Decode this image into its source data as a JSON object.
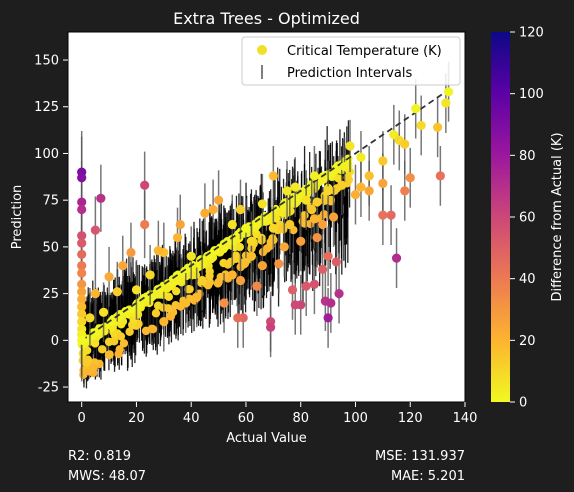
{
  "figure": {
    "background": "#1e1e1e",
    "plot_background": "#ffffff",
    "text_color": "#ffffff"
  },
  "stats": {
    "r2": "R2: 0.819",
    "mws": "MWS: 48.07",
    "mse": "MSE: 131.937",
    "mae": "MAE: 5.201"
  },
  "chart_data": {
    "type": "scatter",
    "title": "Extra Trees - Optimized",
    "xlabel": "Actual Value",
    "ylabel": "Prediction",
    "xlim": [
      -5,
      140
    ],
    "ylim": [
      -33,
      165
    ],
    "xticks": [
      0,
      20,
      40,
      60,
      80,
      100,
      120,
      140
    ],
    "yticks": [
      -25,
      0,
      25,
      50,
      75,
      100,
      125,
      150
    ],
    "grid": false,
    "legend": {
      "position": "top-right",
      "entries": [
        {
          "label": "Critical Temperature (K)",
          "marker": "circle",
          "color": "#f0e028"
        },
        {
          "label": "Prediction Intervals",
          "marker": "errorbar",
          "color": "#7f7f7f"
        }
      ]
    },
    "reference_line": {
      "from": [
        0,
        0
      ],
      "to": [
        135,
        135
      ],
      "style": "dashed",
      "color": "#333333"
    },
    "colorbar": {
      "label": "Difference from Actual (K)",
      "range": [
        0,
        120
      ],
      "ticks": [
        0,
        20,
        40,
        60,
        80,
        100,
        120
      ],
      "colormap": "plasma_r",
      "stops": [
        "#f0f921",
        "#fdb42f",
        "#ed7953",
        "#cc4778",
        "#9c179e",
        "#5c01a6",
        "#0d0887"
      ]
    },
    "dense_cloud": {
      "x_range": [
        0,
        98
      ],
      "relative_spread": 0.45,
      "interval_halfwidth": 20
    },
    "points": [
      {
        "x": 0,
        "y": 90,
        "err": 22
      },
      {
        "x": 0,
        "y": 87,
        "err": 22
      },
      {
        "x": 0,
        "y": 74,
        "err": 22
      },
      {
        "x": 0,
        "y": 70,
        "err": 22
      },
      {
        "x": 0,
        "y": 56,
        "err": 22
      },
      {
        "x": 0,
        "y": 52,
        "err": 22
      },
      {
        "x": 0,
        "y": 46,
        "err": 22
      },
      {
        "x": 0,
        "y": 40,
        "err": 22
      },
      {
        "x": 0,
        "y": 36,
        "err": 22
      },
      {
        "x": 0,
        "y": 30,
        "err": 22
      },
      {
        "x": 0,
        "y": 26,
        "err": 22
      },
      {
        "x": 0,
        "y": 22,
        "err": 22
      },
      {
        "x": 0,
        "y": 18,
        "err": 22
      },
      {
        "x": 0,
        "y": 14,
        "err": 22
      },
      {
        "x": 0,
        "y": 10,
        "err": 22
      },
      {
        "x": 0,
        "y": 6,
        "err": 22
      },
      {
        "x": 0,
        "y": 3,
        "err": 22
      },
      {
        "x": 0,
        "y": 0,
        "err": 22
      },
      {
        "x": 7,
        "y": 76,
        "err": 18
      },
      {
        "x": 5,
        "y": 59,
        "err": 18
      },
      {
        "x": 23,
        "y": 83,
        "err": 18
      },
      {
        "x": 23,
        "y": 62,
        "err": 18
      },
      {
        "x": 102,
        "y": 98,
        "err": 14
      },
      {
        "x": 98,
        "y": 104,
        "err": 14
      },
      {
        "x": 102,
        "y": 82,
        "err": 16
      },
      {
        "x": 105,
        "y": 88,
        "err": 16
      },
      {
        "x": 105,
        "y": 80,
        "err": 16
      },
      {
        "x": 110,
        "y": 84,
        "err": 16
      },
      {
        "x": 110,
        "y": 96,
        "err": 16
      },
      {
        "x": 114,
        "y": 110,
        "err": 16
      },
      {
        "x": 116,
        "y": 107,
        "err": 16
      },
      {
        "x": 118,
        "y": 105,
        "err": 16
      },
      {
        "x": 118,
        "y": 80,
        "err": 16
      },
      {
        "x": 120,
        "y": 87,
        "err": 16
      },
      {
        "x": 122,
        "y": 124,
        "err": 16
      },
      {
        "x": 124,
        "y": 115,
        "err": 16
      },
      {
        "x": 130,
        "y": 114,
        "err": 16
      },
      {
        "x": 133,
        "y": 127,
        "err": 16
      },
      {
        "x": 134,
        "y": 133,
        "err": 16
      },
      {
        "x": 131,
        "y": 88,
        "err": 16
      },
      {
        "x": 110,
        "y": 67,
        "err": 16
      },
      {
        "x": 113,
        "y": 67,
        "err": 16
      },
      {
        "x": 115,
        "y": 44,
        "err": 16
      },
      {
        "x": 90,
        "y": 12,
        "err": 16
      },
      {
        "x": 89,
        "y": 21,
        "err": 16
      },
      {
        "x": 91,
        "y": 20,
        "err": 16
      },
      {
        "x": 94,
        "y": 25,
        "err": 16
      },
      {
        "x": 88,
        "y": 38,
        "err": 16
      },
      {
        "x": 90,
        "y": 45,
        "err": 16
      },
      {
        "x": 93,
        "y": 42,
        "err": 16
      },
      {
        "x": 85,
        "y": 65,
        "err": 16
      },
      {
        "x": 80,
        "y": 19,
        "err": 16
      },
      {
        "x": 78,
        "y": 19,
        "err": 16
      },
      {
        "x": 77,
        "y": 27,
        "err": 16
      },
      {
        "x": 69,
        "y": 10,
        "err": 16
      },
      {
        "x": 69,
        "y": 7,
        "err": 16
      },
      {
        "x": 59,
        "y": 12,
        "err": 16
      },
      {
        "x": 57,
        "y": 12,
        "err": 16
      },
      {
        "x": 52,
        "y": 20,
        "err": 16
      },
      {
        "x": 58,
        "y": 32,
        "err": 16
      },
      {
        "x": 64,
        "y": 29,
        "err": 16
      },
      {
        "x": 66,
        "y": 40,
        "err": 16
      },
      {
        "x": 72,
        "y": 41,
        "err": 16
      },
      {
        "x": 74,
        "y": 50,
        "err": 16
      },
      {
        "x": 80,
        "y": 53,
        "err": 16
      },
      {
        "x": 82,
        "y": 29,
        "err": 16
      },
      {
        "x": 85,
        "y": 30,
        "err": 16
      },
      {
        "x": 86,
        "y": 55,
        "err": 16
      },
      {
        "x": 84,
        "y": 70,
        "err": 16
      },
      {
        "x": 90,
        "y": 80,
        "err": 16
      },
      {
        "x": 92,
        "y": 66,
        "err": 16
      },
      {
        "x": 95,
        "y": 83,
        "err": 16
      },
      {
        "x": 96,
        "y": 93,
        "err": 16
      },
      {
        "x": 88,
        "y": 62,
        "err": 16
      },
      {
        "x": 100,
        "y": 78,
        "err": 16
      },
      {
        "x": 78,
        "y": 82,
        "err": 16
      },
      {
        "x": 75,
        "y": 80,
        "err": 16
      },
      {
        "x": 70,
        "y": 88,
        "err": 16
      },
      {
        "x": 85,
        "y": 88,
        "err": 16
      },
      {
        "x": 48,
        "y": 70,
        "err": 16
      },
      {
        "x": 50,
        "y": 75,
        "err": 16
      },
      {
        "x": 45,
        "y": 68,
        "err": 16
      },
      {
        "x": 36,
        "y": 62,
        "err": 16
      },
      {
        "x": 35,
        "y": 55,
        "err": 16
      },
      {
        "x": 30,
        "y": 47,
        "err": 16
      },
      {
        "x": 28,
        "y": 48,
        "err": 16
      },
      {
        "x": 18,
        "y": 47,
        "err": 16
      },
      {
        "x": 15,
        "y": 40,
        "err": 16
      },
      {
        "x": 10,
        "y": 34,
        "err": 16
      },
      {
        "x": 42,
        "y": 23,
        "err": 16
      },
      {
        "x": 38,
        "y": 20,
        "err": 16
      },
      {
        "x": 30,
        "y": 10,
        "err": 16
      },
      {
        "x": 44,
        "y": 32,
        "err": 16
      },
      {
        "x": 55,
        "y": 35,
        "err": 16
      },
      {
        "x": 62,
        "y": 45,
        "err": 16
      },
      {
        "x": 60,
        "y": 60,
        "err": 16
      },
      {
        "x": 55,
        "y": 62,
        "err": 16
      },
      {
        "x": 58,
        "y": 70,
        "err": 16
      },
      {
        "x": 66,
        "y": 73,
        "err": 16
      },
      {
        "x": 40,
        "y": 45,
        "err": 16
      },
      {
        "x": 25,
        "y": 35,
        "err": 16
      },
      {
        "x": 20,
        "y": 27,
        "err": 16
      },
      {
        "x": 13,
        "y": 26,
        "err": 16
      },
      {
        "x": 8,
        "y": 15,
        "err": 16
      },
      {
        "x": 5,
        "y": 25,
        "err": 16
      },
      {
        "x": 3,
        "y": 12,
        "err": 16
      },
      {
        "x": 62,
        "y": 53,
        "err": 16
      },
      {
        "x": 70,
        "y": 60,
        "err": 16
      },
      {
        "x": 76,
        "y": 62,
        "err": 16
      },
      {
        "x": 82,
        "y": 75,
        "err": 16
      },
      {
        "x": 86,
        "y": 74,
        "err": 16
      }
    ]
  }
}
